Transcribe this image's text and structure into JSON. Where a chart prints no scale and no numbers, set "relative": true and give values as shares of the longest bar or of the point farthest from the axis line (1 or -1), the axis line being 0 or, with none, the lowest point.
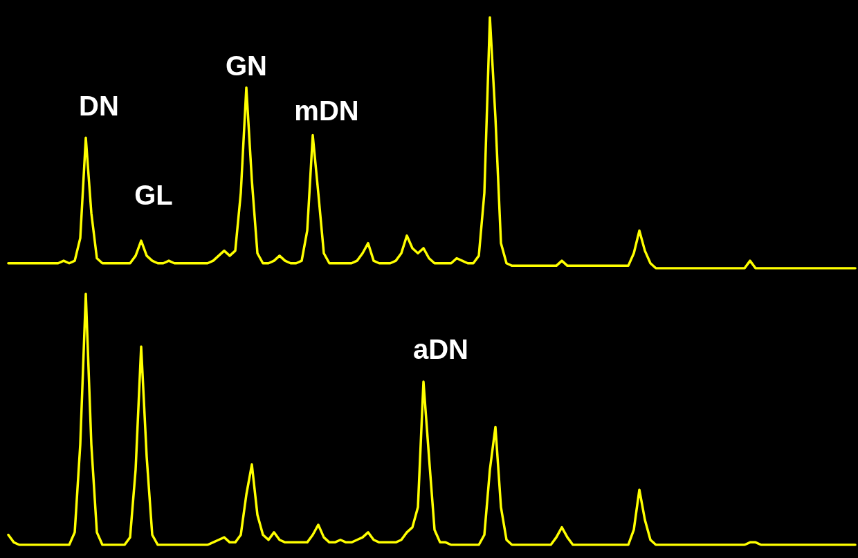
{
  "chart_data": [
    {
      "type": "line",
      "relative": true,
      "annotations": [
        "DN",
        "GL",
        "GN",
        "mDN"
      ],
      "categories": [
        null,
        null,
        null,
        null,
        null,
        null,
        null,
        null,
        null,
        null,
        null,
        null,
        null,
        null,
        null,
        null,
        null,
        null,
        null,
        null,
        null,
        null,
        null,
        null,
        null,
        null,
        null,
        null,
        null,
        null,
        null,
        null,
        null,
        null,
        null,
        null,
        null,
        null,
        null,
        null,
        null,
        null,
        null,
        null,
        null,
        null,
        null,
        null,
        null,
        null,
        null,
        null,
        null,
        null,
        null,
        null,
        null,
        null,
        null,
        null,
        null,
        null,
        null,
        null,
        null,
        null,
        null,
        null,
        null,
        null,
        null,
        null,
        null,
        null,
        null,
        null,
        null,
        null,
        null,
        null,
        null,
        null,
        null,
        null,
        null,
        null,
        null,
        null,
        null,
        null,
        null,
        null,
        null,
        null,
        null,
        null,
        null,
        null,
        null,
        null,
        null,
        null,
        null,
        null,
        null,
        null,
        null,
        null,
        null,
        null,
        null,
        null,
        null,
        null,
        null,
        null,
        null,
        null,
        null,
        null,
        null,
        null,
        null,
        null,
        null,
        null,
        null,
        null,
        null,
        null,
        null,
        null,
        null,
        null,
        null,
        null,
        null,
        null,
        null,
        null,
        null,
        null,
        null,
        null,
        null,
        null,
        null,
        null,
        null,
        null,
        null,
        null,
        null,
        null
      ],
      "series": [
        {
          "color": "#ffff00",
          "values": [
            0.02,
            0.02,
            0.02,
            0.02,
            0.02,
            0.02,
            0.02,
            0.02,
            0.02,
            0.02,
            0.03,
            0.02,
            0.03,
            0.12,
            0.52,
            0.22,
            0.04,
            0.02,
            0.02,
            0.02,
            0.02,
            0.02,
            0.02,
            0.05,
            0.11,
            0.05,
            0.03,
            0.02,
            0.02,
            0.03,
            0.02,
            0.02,
            0.02,
            0.02,
            0.02,
            0.02,
            0.02,
            0.03,
            0.05,
            0.07,
            0.05,
            0.07,
            0.3,
            0.72,
            0.35,
            0.06,
            0.02,
            0.02,
            0.03,
            0.05,
            0.03,
            0.02,
            0.02,
            0.03,
            0.15,
            0.53,
            0.3,
            0.06,
            0.02,
            0.02,
            0.02,
            0.02,
            0.02,
            0.03,
            0.06,
            0.1,
            0.03,
            0.02,
            0.02,
            0.02,
            0.03,
            0.06,
            0.13,
            0.08,
            0.06,
            0.08,
            0.04,
            0.02,
            0.02,
            0.02,
            0.02,
            0.04,
            0.03,
            0.02,
            0.02,
            0.05,
            0.3,
            1,
            0.6,
            0.1,
            0.02,
            0.01,
            0.01,
            0.01,
            0.01,
            0.01,
            0.01,
            0.01,
            0.01,
            0.01,
            0.03,
            0.01,
            0.01,
            0.01,
            0.01,
            0.01,
            0.01,
            0.01,
            0.01,
            0.01,
            0.01,
            0.01,
            0.01,
            0.06,
            0.15,
            0.07,
            0.02,
            0,
            0,
            0,
            0,
            0,
            0,
            0,
            0,
            0,
            0,
            0,
            0,
            0,
            0,
            0,
            0,
            0,
            0.03,
            0,
            0,
            0,
            0,
            0,
            0,
            0,
            0,
            0,
            0,
            0,
            0,
            0,
            0,
            0,
            0,
            0,
            0,
            0
          ]
        }
      ]
    },
    {
      "type": "line",
      "relative": true,
      "annotations": [
        "aDN"
      ],
      "categories": [
        null,
        null,
        null,
        null,
        null,
        null,
        null,
        null,
        null,
        null,
        null,
        null,
        null,
        null,
        null,
        null,
        null,
        null,
        null,
        null,
        null,
        null,
        null,
        null,
        null,
        null,
        null,
        null,
        null,
        null,
        null,
        null,
        null,
        null,
        null,
        null,
        null,
        null,
        null,
        null,
        null,
        null,
        null,
        null,
        null,
        null,
        null,
        null,
        null,
        null,
        null,
        null,
        null,
        null,
        null,
        null,
        null,
        null,
        null,
        null,
        null,
        null,
        null,
        null,
        null,
        null,
        null,
        null,
        null,
        null,
        null,
        null,
        null,
        null,
        null,
        null,
        null,
        null,
        null,
        null,
        null,
        null,
        null,
        null,
        null,
        null,
        null,
        null,
        null,
        null,
        null,
        null,
        null,
        null,
        null,
        null,
        null,
        null,
        null,
        null,
        null,
        null,
        null,
        null,
        null,
        null,
        null,
        null,
        null,
        null,
        null,
        null,
        null,
        null,
        null,
        null,
        null,
        null,
        null,
        null,
        null,
        null,
        null,
        null,
        null,
        null,
        null,
        null,
        null,
        null,
        null,
        null,
        null,
        null,
        null,
        null,
        null,
        null,
        null,
        null,
        null,
        null,
        null,
        null,
        null,
        null,
        null,
        null,
        null,
        null,
        null,
        null,
        null,
        null
      ],
      "series": [
        {
          "color": "#ffff00",
          "values": [
            0.04,
            0.01,
            0,
            0,
            0,
            0,
            0,
            0,
            0,
            0,
            0,
            0,
            0.05,
            0.4,
            1,
            0.4,
            0.05,
            0,
            0,
            0,
            0,
            0,
            0.03,
            0.3,
            0.79,
            0.35,
            0.04,
            0,
            0,
            0,
            0,
            0,
            0,
            0,
            0,
            0,
            0,
            0.01,
            0.02,
            0.03,
            0.01,
            0.01,
            0.04,
            0.2,
            0.32,
            0.12,
            0.04,
            0.02,
            0.05,
            0.02,
            0.01,
            0.01,
            0.01,
            0.01,
            0.01,
            0.04,
            0.08,
            0.03,
            0.01,
            0.01,
            0.02,
            0.01,
            0.01,
            0.02,
            0.03,
            0.05,
            0.02,
            0.01,
            0.01,
            0.01,
            0.01,
            0.02,
            0.05,
            0.07,
            0.15,
            0.65,
            0.35,
            0.06,
            0.01,
            0.01,
            0,
            0,
            0,
            0,
            0,
            0,
            0.04,
            0.3,
            0.47,
            0.15,
            0.02,
            0,
            0,
            0,
            0,
            0,
            0,
            0,
            0,
            0.03,
            0.07,
            0.03,
            0,
            0,
            0,
            0,
            0,
            0,
            0,
            0,
            0,
            0,
            0,
            0.06,
            0.22,
            0.1,
            0.02,
            0,
            0,
            0,
            0,
            0,
            0,
            0,
            0,
            0,
            0,
            0,
            0,
            0,
            0,
            0,
            0,
            0,
            0.01,
            0.01,
            0,
            0,
            0,
            0,
            0,
            0,
            0,
            0,
            0,
            0,
            0,
            0,
            0,
            0,
            0,
            0,
            0,
            0
          ]
        }
      ]
    }
  ]
}
